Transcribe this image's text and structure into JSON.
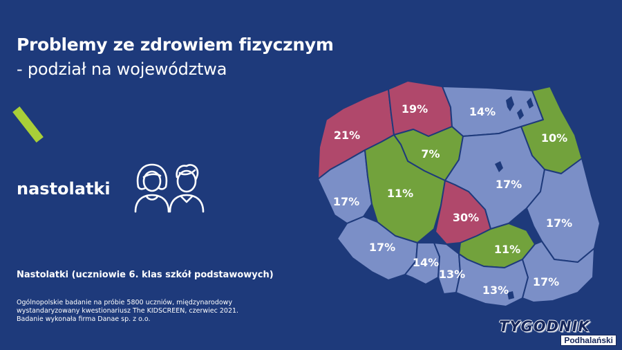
{
  "header": {
    "title": "Problemy ze zdrowiem fizycznym",
    "subtitle": "- podział na województwa"
  },
  "teen_label": "nastolatki",
  "caption": "Nastolatki (uczniowie 6. klas szkół podstawowych)",
  "source_lines": [
    "Ogólnopolskie badanie na próbie 5800 uczniów, międzynarodowy",
    "wystandaryzowany kwestionariusz The KIDSCREEN, czerwiec 2021.",
    "Badanie wykonała firma Danae sp. z o.o."
  ],
  "watermark": {
    "title": "TYGODNIK",
    "subtitle": "Podhalański"
  },
  "colors": {
    "background": "#1e3a7b",
    "high": "#b0486b",
    "medium": "#7b8fc7",
    "low": "#72a23c",
    "accent": "#a9cf38"
  },
  "map": {
    "regions": [
      {
        "name": "zachodniopomorskie",
        "value": "21%",
        "level": "high"
      },
      {
        "name": "pomorskie",
        "value": "19%",
        "level": "high"
      },
      {
        "name": "warmińsko-mazurskie",
        "value": "14%",
        "level": "medium"
      },
      {
        "name": "podlaskie",
        "value": "10%",
        "level": "low"
      },
      {
        "name": "kujawsko-pomorskie",
        "value": "7%",
        "level": "low"
      },
      {
        "name": "lubuskie",
        "value": "17%",
        "level": "medium"
      },
      {
        "name": "wielkopolskie",
        "value": "11%",
        "level": "low"
      },
      {
        "name": "mazowieckie",
        "value": "17%",
        "level": "medium"
      },
      {
        "name": "łódzkie",
        "value": "30%",
        "level": "high"
      },
      {
        "name": "lubelskie",
        "value": "17%",
        "level": "medium"
      },
      {
        "name": "dolnośląskie",
        "value": "17%",
        "level": "medium"
      },
      {
        "name": "opolskie",
        "value": "14%",
        "level": "medium"
      },
      {
        "name": "śląskie",
        "value": "13%",
        "level": "medium"
      },
      {
        "name": "świętokrzyskie",
        "value": "11%",
        "level": "low"
      },
      {
        "name": "małopolskie",
        "value": "13%",
        "level": "medium"
      },
      {
        "name": "podkarpackie",
        "value": "17%",
        "level": "medium"
      }
    ]
  }
}
